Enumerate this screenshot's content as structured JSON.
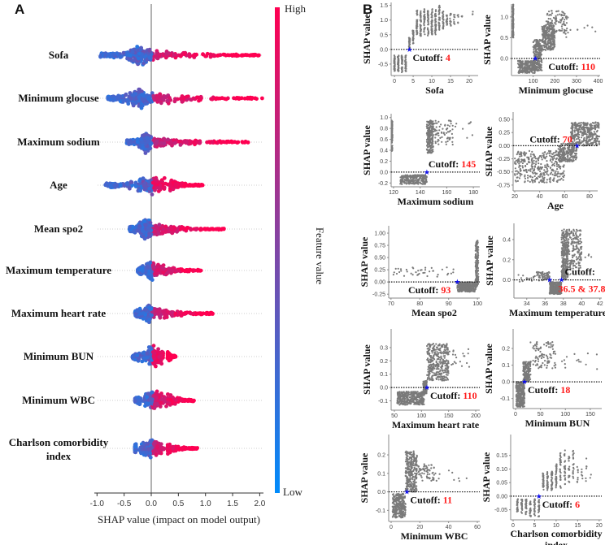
{
  "panels": {
    "a": "A",
    "b": "B"
  },
  "colors": {
    "low": "#008bfb",
    "high": "#ff0051",
    "points": "#7a7a7a",
    "cutoff_marker": "#1010ee",
    "cutoff_value": "#ff1a1a"
  },
  "chart_data": [
    {
      "type": "scatter",
      "subtype": "shap-beeswarm",
      "xlabel": "SHAP value (impact on model output)",
      "xlim": [
        -1.1,
        2.1
      ],
      "xticks": [
        "-1.0",
        "-0.5",
        "0.0",
        "0.5",
        "1.0",
        "1.5",
        "2.0"
      ],
      "xtick_values": [
        -1.0,
        -0.5,
        0.0,
        0.5,
        1.0,
        1.5,
        2.0
      ],
      "colorbar": {
        "label": "Feature value",
        "high": "High",
        "low": "Low"
      },
      "rows": [
        {
          "label": "Sofa",
          "range": [
            -0.95,
            2.0
          ],
          "bulk": [
            -0.55,
            0.1
          ]
        },
        {
          "label": "Minimum glocuse",
          "range": [
            -0.8,
            2.05
          ],
          "bulk": [
            -0.5,
            0.1
          ]
        },
        {
          "label": "Maximum sodium",
          "range": [
            -0.45,
            1.8
          ],
          "bulk": [
            -0.25,
            0.05
          ]
        },
        {
          "label": "Age",
          "range": [
            -0.85,
            0.95
          ],
          "bulk": [
            -0.35,
            0.35
          ]
        },
        {
          "label": "Mean spo2",
          "range": [
            -0.4,
            1.35
          ],
          "bulk": [
            -0.3,
            0.1
          ]
        },
        {
          "label": "Maximum temperature",
          "range": [
            -0.25,
            0.95
          ],
          "bulk": [
            -0.15,
            0.1
          ]
        },
        {
          "label": "Maximum heart rate",
          "range": [
            -0.3,
            1.15
          ],
          "bulk": [
            -0.2,
            0.1
          ]
        },
        {
          "label": "Minimum BUN",
          "range": [
            -0.35,
            0.45
          ],
          "bulk": [
            -0.22,
            0.3
          ]
        },
        {
          "label": "Minimum WBC",
          "range": [
            -0.3,
            0.8
          ],
          "bulk": [
            -0.2,
            0.3
          ]
        },
        {
          "label": "Charlson comorbidity",
          "label2": "index",
          "range": [
            -0.3,
            0.85
          ],
          "bulk": [
            -0.28,
            0.3
          ]
        }
      ]
    },
    {
      "type": "scatter",
      "subtype": "shap-dependence",
      "xlabel": "Sofa",
      "ylabel": "SHAP value",
      "xlim": [
        -0.9,
        22.4
      ],
      "ylim": [
        -0.89,
        1.6
      ],
      "xticks": [
        0,
        5,
        10,
        15,
        20
      ],
      "yticks": [
        "-0.5",
        "0.0",
        "0.5",
        "1.0",
        "1.5"
      ],
      "cutoff": [
        4
      ],
      "cutoff_prefix": "Cutoff: ",
      "cutoff_label": "4",
      "clusters": [
        [
          0,
          0,
          -0.75,
          -0.2,
          40
        ],
        [
          1,
          1,
          -0.75,
          -0.2,
          40
        ],
        [
          2,
          2,
          -0.78,
          -0.2,
          40
        ],
        [
          3,
          3,
          -0.75,
          -0.2,
          40
        ],
        [
          4,
          4,
          0,
          0.4,
          30
        ],
        [
          5,
          5,
          0.15,
          0.65,
          30
        ],
        [
          6,
          6,
          0.45,
          1.35,
          40
        ],
        [
          7,
          7,
          0.45,
          1.35,
          40
        ],
        [
          8,
          8,
          0.45,
          1.4,
          40
        ],
        [
          9,
          9,
          0.45,
          1.35,
          40
        ],
        [
          10,
          10,
          0.5,
          1.4,
          40
        ],
        [
          11,
          11,
          0.5,
          1.35,
          40
        ],
        [
          12,
          12,
          0.6,
          1.5,
          35
        ],
        [
          13,
          13,
          0.7,
          1.3,
          25
        ],
        [
          14,
          14,
          0.8,
          1.2,
          15
        ],
        [
          15,
          15,
          0.8,
          1.3,
          12
        ],
        [
          16,
          16,
          0.85,
          1.2,
          8
        ],
        [
          17,
          17,
          0.9,
          1.2,
          5
        ],
        [
          18,
          18,
          0.95,
          1.15,
          3
        ],
        [
          21,
          21,
          1.15,
          1.3,
          3
        ]
      ]
    },
    {
      "type": "scatter",
      "subtype": "shap-dependence",
      "xlabel": "Minimum glocuse",
      "ylabel": "SHAP value",
      "xlim": [
        0,
        409
      ],
      "ylim": [
        -0.41,
        1.31
      ],
      "xticks": [
        100,
        200,
        300,
        400
      ],
      "yticks": [
        "0.0",
        "0.5",
        "1.0"
      ],
      "cutoff": [
        110
      ],
      "cutoff_prefix": "Cutoff: ",
      "cutoff_label": "110",
      "clusters": [
        [
          5,
          9,
          0.5,
          1.3,
          120
        ],
        [
          30,
          110,
          -0.35,
          -0.05,
          250
        ],
        [
          100,
          140,
          -0.3,
          0.45,
          250
        ],
        [
          140,
          200,
          0.2,
          0.8,
          250
        ],
        [
          160,
          260,
          0.5,
          1.15,
          120
        ],
        [
          260,
          390,
          0.6,
          0.8,
          8
        ]
      ]
    },
    {
      "type": "scatter",
      "subtype": "shap-dependence",
      "xlabel": "Maximum sodium",
      "ylabel": "SHAP value",
      "xlim": [
        118.2,
        184.8
      ],
      "ylim": [
        -0.27,
        1.07
      ],
      "xticks": [
        120,
        140,
        160,
        180
      ],
      "yticks": [
        "-0.2",
        "0.0",
        "0.2",
        "0.4",
        "0.6",
        "0.8",
        "1.0"
      ],
      "cutoff": [
        145
      ],
      "cutoff_prefix": "Cutoff: ",
      "cutoff_label": "145",
      "clusters": [
        [
          118.5,
          119.2,
          0.38,
          0.95,
          90
        ],
        [
          125,
          145,
          -0.22,
          -0.05,
          260
        ],
        [
          145,
          150,
          0.35,
          0.95,
          220
        ],
        [
          150,
          165,
          0.5,
          0.95,
          70
        ],
        [
          165,
          180,
          0.6,
          0.95,
          8
        ]
      ]
    },
    {
      "type": "scatter",
      "subtype": "shap-dependence",
      "xlabel": "Age",
      "ylabel": "SHAP value",
      "xlim": [
        18.7,
        86.5
      ],
      "ylim": [
        -0.86,
        0.64
      ],
      "xticks": [
        20,
        40,
        60,
        80
      ],
      "yticks": [
        "-0.75",
        "-0.50",
        "-0.25",
        "0.00",
        "0.25",
        "0.50"
      ],
      "cutoff": [
        70
      ],
      "cutoff_prefix": "Cutoff: ",
      "cutoff_label": "70",
      "clusters": [
        [
          20,
          60,
          -0.7,
          -0.1,
          350
        ],
        [
          55,
          70,
          -0.3,
          0.05,
          220
        ],
        [
          65,
          88,
          0,
          0.45,
          350
        ]
      ]
    },
    {
      "type": "scatter",
      "subtype": "shap-dependence",
      "xlabel": "Mean spo2",
      "ylabel": "SHAP value",
      "xlim": [
        69.2,
        100.8
      ],
      "ylim": [
        -0.33,
        1.15
      ],
      "xticks": [
        70,
        80,
        90,
        100
      ],
      "yticks": [
        "-0.25",
        "0.00",
        "0.25",
        "0.50",
        "0.75",
        "1.00"
      ],
      "cutoff": [
        93
      ],
      "cutoff_prefix": "Cutoff: ",
      "cutoff_label": "93",
      "clusters": [
        [
          70,
          93,
          0.1,
          0.3,
          40
        ],
        [
          93,
          99.5,
          -0.2,
          0,
          320
        ],
        [
          99.3,
          100.3,
          -0.1,
          0.85,
          180
        ]
      ]
    },
    {
      "type": "scatter",
      "subtype": "shap-dependence",
      "xlabel": "Maximum temperature",
      "ylabel": "SHAP value",
      "xlim": [
        32.6,
        42.2
      ],
      "ylim": [
        -0.18,
        0.56
      ],
      "xticks": [
        34,
        36,
        38,
        40,
        42
      ],
      "yticks": [
        "0.0",
        "0.2",
        "0.4"
      ],
      "cutoff": [
        36.5,
        37.8
      ],
      "cutoff_prefix": "Cutoff:",
      "cutoff_label": "36.5 & 37.8",
      "clusters": [
        [
          33,
          36,
          -0.02,
          0.05,
          20
        ],
        [
          35,
          36.5,
          0,
          0.08,
          60
        ],
        [
          36.5,
          37.8,
          -0.14,
          -0.02,
          280
        ],
        [
          37.8,
          38.5,
          0,
          0.5,
          280
        ],
        [
          38.3,
          40,
          0.1,
          0.5,
          180
        ],
        [
          40,
          41.5,
          0.2,
          0.3,
          4
        ]
      ]
    },
    {
      "type": "scatter",
      "subtype": "shap-dependence",
      "xlabel": "Maximum heart rate",
      "ylabel": "SHAP value",
      "xlim": [
        44,
        207.5
      ],
      "ylim": [
        -0.17,
        0.44
      ],
      "xticks": [
        50,
        100,
        150,
        200
      ],
      "yticks": [
        "-0.1",
        "0.0",
        "0.1",
        "0.2",
        "0.3"
      ],
      "cutoff": [
        110
      ],
      "cutoff_prefix": "Cutoff: ",
      "cutoff_label": "110",
      "clusters": [
        [
          55,
          105,
          -0.13,
          -0.03,
          350
        ],
        [
          103,
          110,
          -0.05,
          0.05,
          90
        ],
        [
          110,
          150,
          0.05,
          0.33,
          350
        ],
        [
          150,
          190,
          0.15,
          0.3,
          20
        ]
      ]
    },
    {
      "type": "scatter",
      "subtype": "shap-dependence",
      "xlabel": "Minimum BUN",
      "ylabel": "SHAP value",
      "xlim": [
        -4.9,
        173
      ],
      "ylim": [
        -0.16,
        0.317
      ],
      "xticks": [
        0,
        50,
        100,
        150
      ],
      "yticks": [
        "-0.1",
        "0.0",
        "0.1",
        "0.2"
      ],
      "cutoff": [
        18
      ],
      "cutoff_prefix": "Cutoff: ",
      "cutoff_label": "18",
      "clusters": [
        [
          1,
          18,
          -0.15,
          0,
          280
        ],
        [
          15,
          30,
          0,
          0.12,
          180
        ],
        [
          30,
          80,
          0.08,
          0.24,
          90
        ],
        [
          80,
          170,
          0.06,
          0.18,
          15
        ]
      ]
    },
    {
      "type": "scatter",
      "subtype": "shap-dependence",
      "xlabel": "Minimum WBC",
      "ylabel": "SHAP value",
      "xlim": [
        -1.7,
        61.7
      ],
      "ylim": [
        -0.16,
        0.31
      ],
      "xticks": [
        0,
        20,
        40,
        60
      ],
      "yticks": [
        "-0.1",
        "0.0",
        "0.1",
        "0.2"
      ],
      "cutoff": [
        11
      ],
      "cutoff_prefix": "Cutoff: ",
      "cutoff_label": "11",
      "clusters": [
        [
          1,
          10,
          -0.14,
          -0.01,
          280
        ],
        [
          10,
          18,
          0,
          0.22,
          280
        ],
        [
          18,
          30,
          0.06,
          0.15,
          60
        ],
        [
          30,
          55,
          0.05,
          0.12,
          10
        ]
      ]
    },
    {
      "type": "scatter",
      "subtype": "shap-dependence",
      "xlabel": "Charlson comorbidity",
      "xlabel2": "index",
      "ylabel": "SHAP value",
      "xlim": [
        -0.57,
        20.6
      ],
      "ylim": [
        -0.087,
        0.227
      ],
      "xticks": [
        0,
        5,
        10,
        15,
        20
      ],
      "yticks": [
        "-0.05",
        "0.00",
        "0.05",
        "0.10",
        "0.15"
      ],
      "cutoff": [
        6
      ],
      "cutoff_prefix": "Cutoff: ",
      "cutoff_label": "6",
      "clusters": [
        [
          1,
          1,
          -0.06,
          -0.01,
          25
        ],
        [
          2,
          2,
          -0.065,
          -0.01,
          25
        ],
        [
          3,
          3,
          -0.07,
          -0.01,
          25
        ],
        [
          4,
          4,
          -0.075,
          -0.01,
          25
        ],
        [
          5,
          5,
          -0.075,
          -0.01,
          25
        ],
        [
          6,
          6,
          -0.075,
          -0.01,
          25
        ],
        [
          7,
          7,
          0.02,
          0.085,
          30
        ],
        [
          8,
          8,
          0.02,
          0.09,
          30
        ],
        [
          9,
          9,
          0.02,
          0.095,
          30
        ],
        [
          10,
          10,
          0.03,
          0.12,
          30
        ],
        [
          11,
          11,
          0.03,
          0.16,
          30
        ],
        [
          12,
          12,
          0.04,
          0.17,
          25
        ],
        [
          13,
          13,
          0.05,
          0.15,
          20
        ],
        [
          14,
          14,
          0.05,
          0.17,
          18
        ],
        [
          15,
          15,
          0.05,
          0.11,
          8
        ],
        [
          16,
          16,
          0.05,
          0.12,
          6
        ],
        [
          17,
          17,
          0.05,
          0.14,
          6
        ],
        [
          18,
          18,
          0.06,
          0.08,
          2
        ]
      ]
    }
  ]
}
